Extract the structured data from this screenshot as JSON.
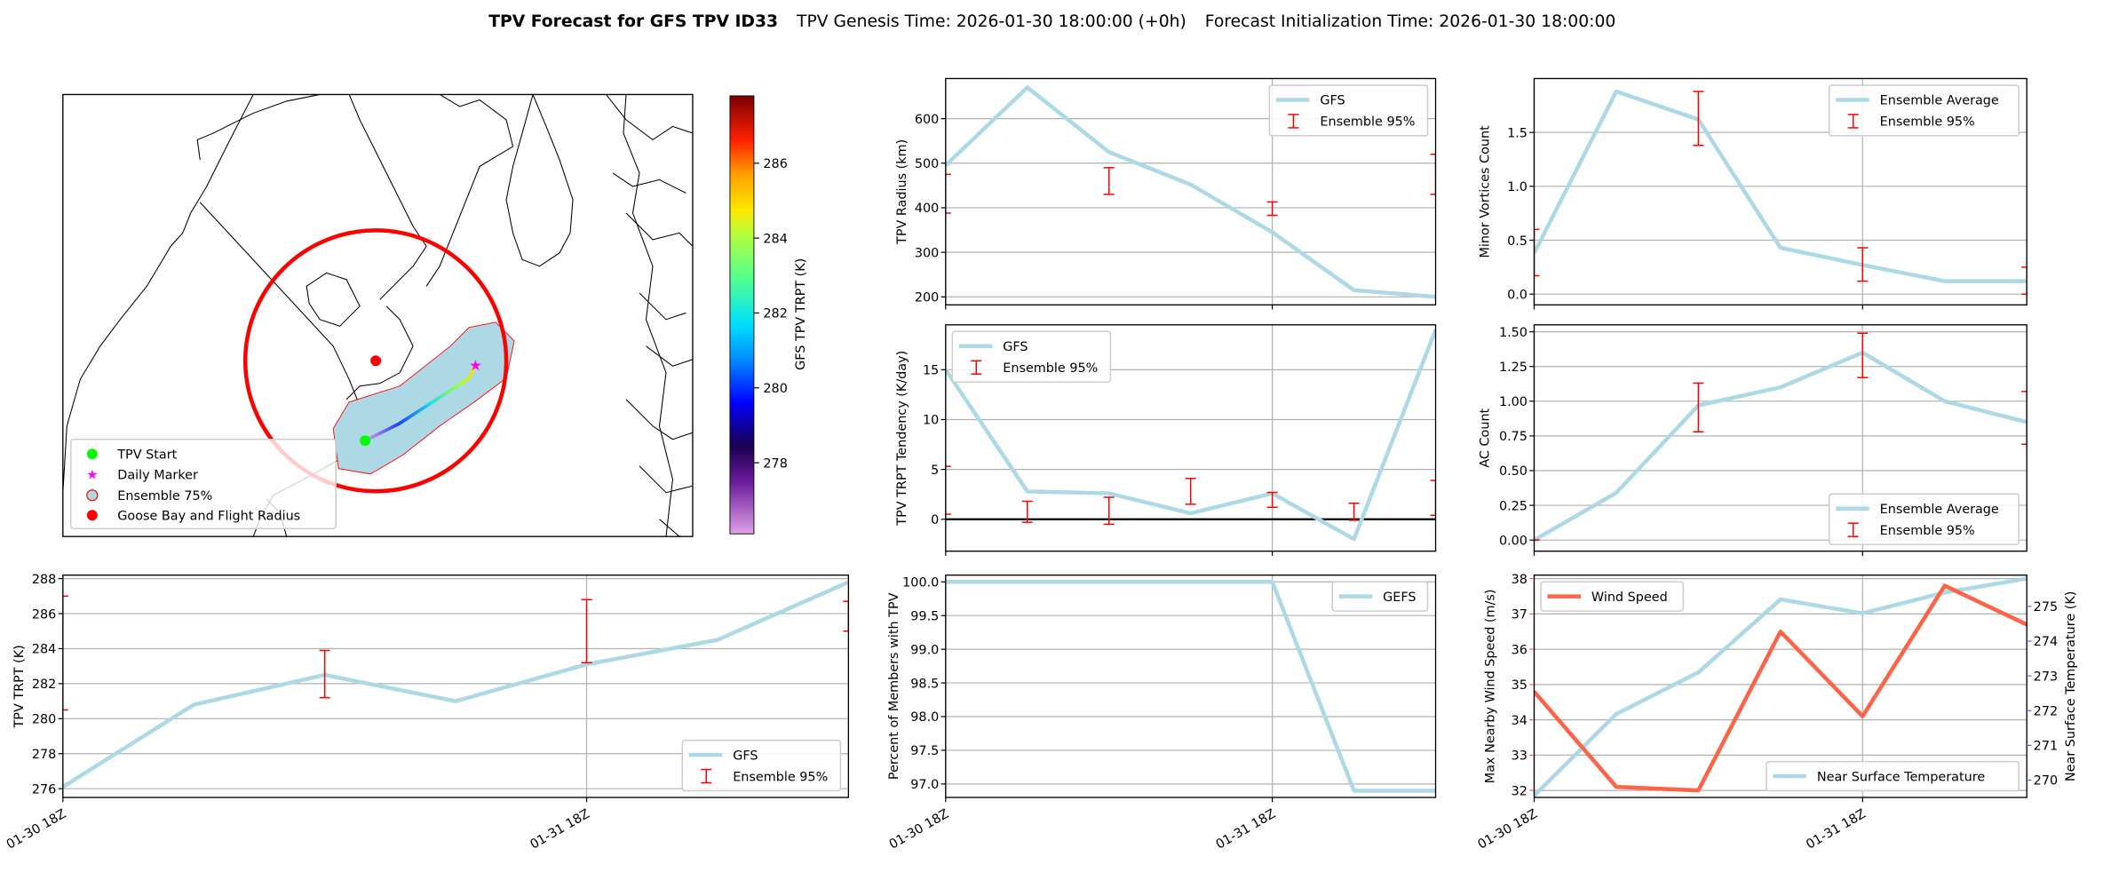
{
  "title": {
    "bold": "TPV Forecast for GFS TPV ID33",
    "genesis": "TPV Genesis Time: 2026-01-30 18:00:00 (+0h)",
    "init": "Forecast Initialization Time: 2026-01-30 18:00:00"
  },
  "colors": {
    "gfs_line": "#add8e6",
    "ensemble_bar": "#ff0000",
    "wind": "#ff6347",
    "temp_axis": "#4169e1",
    "start": "#00ff00",
    "marker": "#ff00ff",
    "goose": "#ff0000"
  },
  "map": {
    "legend": [
      "TPV Start",
      "Daily Marker",
      "Ensemble 75%",
      "Goose Bay and Flight Radius"
    ],
    "colorbar": {
      "label": "GFS TPV TRPT (K)",
      "ticks": [
        "278",
        "280",
        "282",
        "284",
        "286"
      ],
      "range": [
        276.1,
        287.8
      ]
    }
  },
  "x_tick_labels": [
    "01-30 18Z",
    "01-31 18Z"
  ],
  "chart_data": [
    {
      "id": "radius",
      "type": "line",
      "ylabel": "TPV Radius (km)",
      "ylim": [
        182,
        690
      ],
      "yticks": [
        200,
        300,
        400,
        500,
        600
      ],
      "series": [
        {
          "name": "GFS",
          "values": [
            495,
            670,
            525,
            452,
            345,
            215,
            200
          ]
        }
      ],
      "errorbars": {
        "name": "Ensemble 95%",
        "x": [
          0,
          2,
          4,
          6
        ],
        "low": [
          388,
          430,
          383,
          430
        ],
        "high": [
          475,
          490,
          413,
          520
        ]
      },
      "legend": "upper-right"
    },
    {
      "id": "minor",
      "type": "line",
      "ylabel": "Minor Vortices Count",
      "ylim": [
        -0.1,
        2.0
      ],
      "yticks": [
        "0.0",
        "0.5",
        "1.0",
        "1.5"
      ],
      "series": [
        {
          "name": "Ensemble Average",
          "values": [
            0.38,
            1.88,
            1.62,
            0.43,
            0.27,
            0.12,
            0.12
          ]
        }
      ],
      "errorbars": {
        "name": "Ensemble 95%",
        "x": [
          0,
          2,
          4,
          6
        ],
        "low": [
          0.17,
          1.38,
          0.12,
          0.0
        ],
        "high": [
          0.6,
          1.88,
          0.43,
          0.25
        ]
      },
      "legend": "upper-right"
    },
    {
      "id": "tendency",
      "type": "line",
      "ylabel": "TPV TRPT Tendency (K/day)",
      "ylim": [
        -3.2,
        19.5
      ],
      "yticks": [
        0,
        5,
        10,
        15
      ],
      "zero_line": true,
      "series": [
        {
          "name": "GFS",
          "values": [
            15,
            2.8,
            2.6,
            0.6,
            2.6,
            -2.0,
            19
          ]
        }
      ],
      "errorbars": {
        "name": "Ensemble 95%",
        "x": [
          0,
          1,
          2,
          3,
          4,
          5,
          6
        ],
        "low": [
          0.5,
          -0.3,
          -0.5,
          1.5,
          1.2,
          -0.1,
          0.4
        ],
        "high": [
          5.3,
          1.8,
          2.2,
          4.1,
          2.7,
          1.6,
          3.9
        ]
      },
      "legend": "upper-left"
    },
    {
      "id": "ac",
      "type": "line",
      "ylabel": "AC Count",
      "ylim": [
        -0.08,
        1.55
      ],
      "yticks": [
        "0.00",
        "0.25",
        "0.50",
        "0.75",
        "1.00",
        "1.25",
        "1.50"
      ],
      "series": [
        {
          "name": "Ensemble Average",
          "values": [
            0.0,
            0.34,
            0.97,
            1.1,
            1.35,
            1.0,
            0.85
          ]
        }
      ],
      "errorbars": {
        "name": "Ensemble 95%",
        "x": [
          0,
          2,
          4,
          6
        ],
        "low": [
          0.0,
          0.78,
          1.17,
          0.69
        ],
        "high": [
          0.0,
          1.13,
          1.49,
          1.07
        ]
      },
      "legend": "lower-right"
    },
    {
      "id": "trpt",
      "type": "line",
      "ylabel": "TPV TRPT (K)",
      "ylim": [
        275.5,
        288.2
      ],
      "yticks": [
        276,
        278,
        280,
        282,
        284,
        286,
        288
      ],
      "series": [
        {
          "name": "GFS",
          "values": [
            276.1,
            280.8,
            282.5,
            281.0,
            283.1,
            284.5,
            287.8
          ]
        }
      ],
      "errorbars": {
        "name": "Ensemble 95%",
        "x": [
          0,
          2,
          4,
          6
        ],
        "low": [
          280.5,
          281.2,
          283.2,
          285.0
        ],
        "high": [
          287.0,
          283.9,
          286.8,
          286.7
        ]
      },
      "legend": "lower-right"
    },
    {
      "id": "members",
      "type": "line",
      "ylabel": "Percent of Members with TPV",
      "ylim": [
        96.8,
        100.1
      ],
      "yticks": [
        "97.0",
        "97.5",
        "98.0",
        "98.5",
        "99.0",
        "99.5",
        "100.0"
      ],
      "series": [
        {
          "name": "GEFS",
          "values": [
            100,
            100,
            100,
            100,
            100,
            96.9,
            96.9
          ]
        }
      ],
      "legend": "upper-right"
    },
    {
      "id": "wind",
      "type": "line",
      "ylabel": "Max Nearby Wind Speed (m/s)",
      "ylim": [
        31.8,
        38.1
      ],
      "yticks": [
        32,
        33,
        34,
        35,
        36,
        37,
        38
      ],
      "series": [
        {
          "name": "Wind Speed",
          "values": [
            34.8,
            32.1,
            32.0,
            36.5,
            34.1,
            37.8,
            36.7
          ]
        }
      ],
      "y2label": "Near Surface Temperature (K)",
      "y2lim": [
        269.5,
        275.9
      ],
      "y2ticks": [
        270,
        271,
        272,
        273,
        274,
        275
      ],
      "series2": [
        {
          "name": "Near Surface Temperature",
          "values": [
            269.55,
            271.9,
            273.1,
            275.2,
            274.8,
            275.4,
            275.8
          ]
        }
      ],
      "legend": "upper-left",
      "legend2": "lower-right"
    }
  ]
}
